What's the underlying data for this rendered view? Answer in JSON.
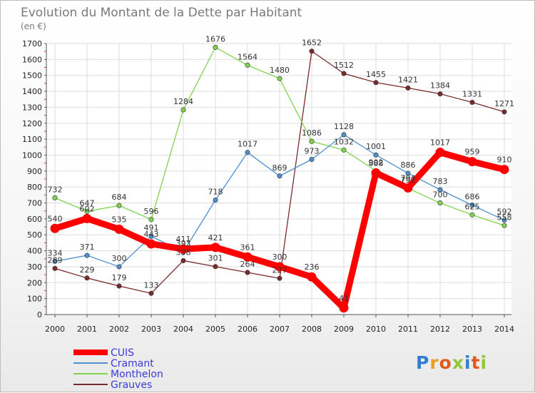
{
  "chart_data": {
    "type": "line",
    "title": "Evolution du Montant de la Dette par Habitant",
    "subtitle": "(en €)",
    "categories": [
      "2000",
      "2001",
      "2002",
      "2003",
      "2004",
      "2005",
      "2006",
      "2007",
      "2008",
      "2009",
      "2010",
      "2011",
      "2012",
      "2013",
      "2014"
    ],
    "ylim": [
      0,
      1700
    ],
    "yticks": [
      0,
      100,
      200,
      300,
      400,
      500,
      600,
      700,
      800,
      900,
      1000,
      1100,
      1200,
      1300,
      1400,
      1500,
      1600,
      1700
    ],
    "grid": true,
    "legend_position": "bottom-left",
    "series": [
      {
        "name": "CUIS",
        "color": "#ff0000",
        "values": [
          540,
          602,
          535,
          443,
          411,
          421,
          361,
          300,
          236,
          41,
          888,
          794,
          1017,
          959,
          910
        ]
      },
      {
        "name": "Cramant",
        "color": "#4f8fcf",
        "values": [
          334,
          371,
          300,
          491,
          393,
          718,
          1017,
          869,
          973,
          1128,
          1001,
          886,
          783,
          686,
          592
        ]
      },
      {
        "name": "Monthelon",
        "color": "#7fd34f",
        "values": [
          732,
          647,
          684,
          596,
          1284,
          1676,
          1564,
          1480,
          1086,
          1032,
          902,
          792,
          700,
          625,
          558
        ]
      },
      {
        "name": "Grauves",
        "color": "#7a2a2a",
        "values": [
          289,
          229,
          179,
          133,
          338,
          301,
          264,
          227,
          1652,
          1512,
          1455,
          1421,
          1384,
          1331,
          1271
        ]
      }
    ]
  },
  "watermark": "Proxiti"
}
